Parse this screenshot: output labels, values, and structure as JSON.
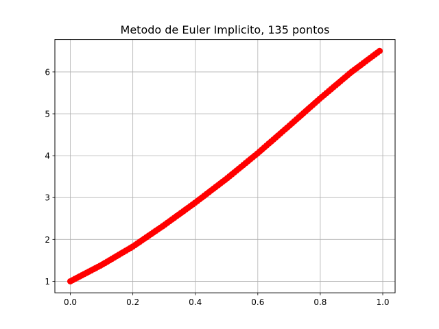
{
  "chart_data": {
    "type": "scatter",
    "title": "Metodo de Euler Implicito, 135 pontos",
    "xlabel": "",
    "ylabel": "",
    "xlim": [
      -0.0495,
      1.0395
    ],
    "ylim": [
      0.7255,
      6.7745
    ],
    "x_ticks": [
      0.0,
      0.2,
      0.4,
      0.6,
      0.8,
      1.0
    ],
    "x_tick_labels": [
      "0.0",
      "0.2",
      "0.4",
      "0.6",
      "0.8",
      "1.0"
    ],
    "y_ticks": [
      1,
      2,
      3,
      4,
      5,
      6
    ],
    "y_tick_labels": [
      "1",
      "2",
      "3",
      "4",
      "5",
      "6"
    ],
    "grid": true,
    "marker_color": "#ff0000",
    "grid_color": "#b0b0b0",
    "x": [
      0.0,
      0.1,
      0.2,
      0.3,
      0.4,
      0.5,
      0.6,
      0.7,
      0.8,
      0.9,
      0.99
    ],
    "y": [
      1.0,
      1.39,
      1.83,
      2.34,
      2.88,
      3.45,
      4.06,
      4.71,
      5.37,
      6.0,
      6.5
    ]
  }
}
